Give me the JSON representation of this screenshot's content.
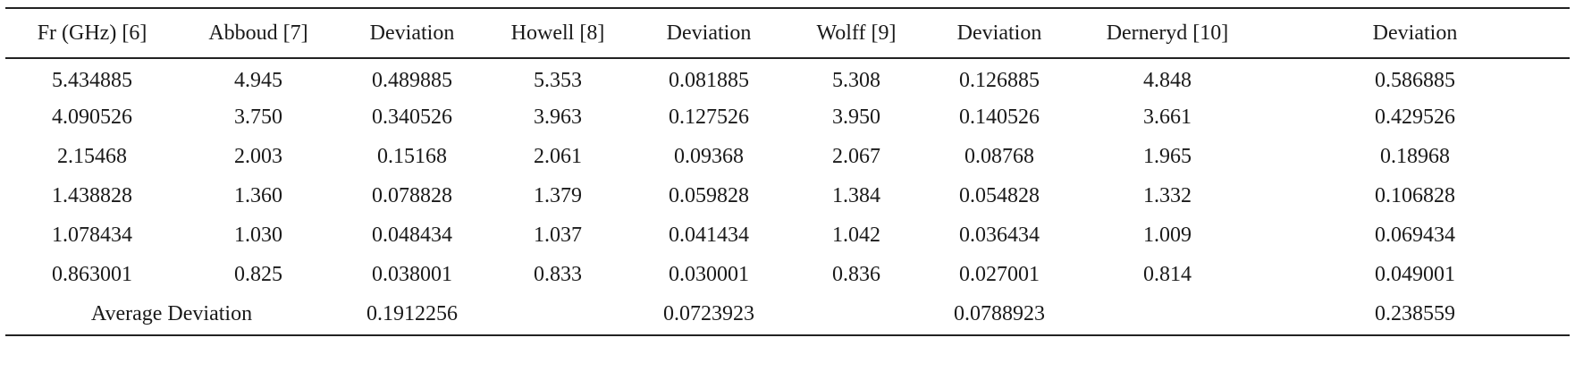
{
  "table": {
    "headers": [
      "Fr (GHz) [6]",
      "Abboud [7]",
      "Deviation",
      "Howell [8]",
      "Deviation",
      "Wolff [9]",
      "Deviation",
      "Derneryd [10]",
      "Deviation"
    ],
    "rows": [
      [
        "5.434885",
        "4.945",
        "0.489885",
        "5.353",
        "0.081885",
        "5.308",
        "0.126885",
        "4.848",
        "0.586885"
      ],
      [
        "4.090526",
        "3.750",
        "0.340526",
        "3.963",
        "0.127526",
        "3.950",
        "0.140526",
        "3.661",
        "0.429526"
      ],
      [
        "2.15468",
        "2.003",
        "0.15168",
        "2.061",
        "0.09368",
        "2.067",
        "0.08768",
        "1.965",
        "0.18968"
      ],
      [
        "1.438828",
        "1.360",
        "0.078828",
        "1.379",
        "0.059828",
        "1.384",
        "0.054828",
        "1.332",
        "0.106828"
      ],
      [
        "1.078434",
        "1.030",
        "0.048434",
        "1.037",
        "0.041434",
        "1.042",
        "0.036434",
        "1.009",
        "0.069434"
      ],
      [
        "0.863001",
        "0.825",
        "0.038001",
        "0.833",
        "0.030001",
        "0.836",
        "0.027001",
        "0.814",
        "0.049001"
      ]
    ],
    "average_row": {
      "label": "Average Deviation",
      "abboud": "0.1912256",
      "howell": "0.0723923",
      "wolff": "0.0788923",
      "derneryd": "0.238559"
    }
  }
}
